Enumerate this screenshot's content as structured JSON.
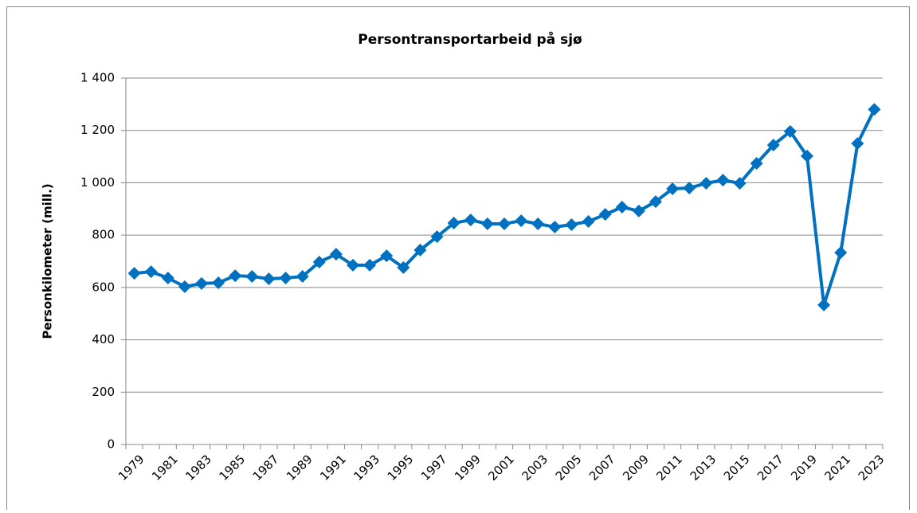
{
  "chart_data": {
    "type": "line",
    "title": "Persontransportarbeid på sjø",
    "y_label": "Personkilometer (mill.)",
    "categories": [
      "1979",
      null,
      "1981",
      null,
      "1983",
      null,
      "1985",
      null,
      "1987",
      null,
      "1989",
      null,
      "1991",
      null,
      "1993",
      null,
      "1995",
      null,
      "1997",
      null,
      "1999",
      null,
      "2001",
      null,
      "2003",
      null,
      "2005",
      null,
      "2007",
      null,
      "2009",
      null,
      "2011",
      null,
      "2013",
      null,
      "2015",
      null,
      "2017",
      null,
      "2019",
      null,
      "2021",
      null,
      "2023"
    ],
    "series": [
      {
        "name": "Personkilometer",
        "color": "#0070c0",
        "values": [
          654,
          660,
          636,
          603,
          615,
          618,
          645,
          642,
          633,
          636,
          642,
          697,
          727,
          685,
          685,
          721,
          676,
          743,
          794,
          846,
          858,
          843,
          843,
          855,
          843,
          831,
          840,
          852,
          879,
          907,
          892,
          928,
          977,
          980,
          998,
          1010,
          998,
          1074,
          1144,
          1196,
          1102,
          533,
          733,
          1150,
          1280
        ]
      }
    ],
    "ylim": [
      0,
      1400
    ],
    "yticks": [
      0,
      200,
      400,
      600,
      800,
      {
        "value": 1000,
        "label": "1 000"
      },
      {
        "value": 1200,
        "label": "1 200"
      },
      {
        "value": 1400,
        "label": "1 400"
      }
    ],
    "grid": true
  }
}
